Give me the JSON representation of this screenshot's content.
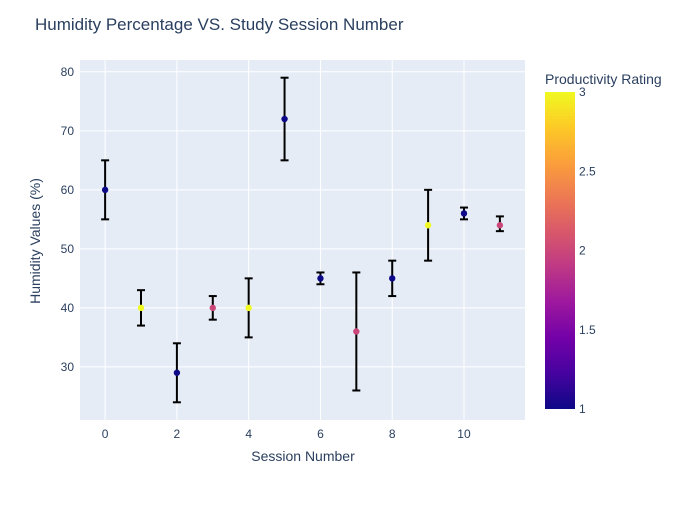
{
  "chart_data": {
    "type": "scatter",
    "title": "Humidity Percentage VS. Study Session Number",
    "xlabel": "Session Number",
    "ylabel": "Humidity Values (%)",
    "xlim": [
      -0.7,
      11.7
    ],
    "ylim": [
      21,
      82
    ],
    "x_ticks": [
      0,
      2,
      4,
      6,
      8,
      10
    ],
    "y_ticks": [
      30,
      40,
      50,
      60,
      70,
      80
    ],
    "grid": true,
    "points": [
      {
        "x": 0,
        "y": 60,
        "err_low": 55,
        "err_high": 65,
        "rating": 1
      },
      {
        "x": 1,
        "y": 40,
        "err_low": 37,
        "err_high": 43,
        "rating": 3
      },
      {
        "x": 2,
        "y": 29,
        "err_low": 24,
        "err_high": 34,
        "rating": 1
      },
      {
        "x": 3,
        "y": 40,
        "err_low": 38,
        "err_high": 42,
        "rating": 2
      },
      {
        "x": 4,
        "y": 40,
        "err_low": 35,
        "err_high": 45,
        "rating": 3
      },
      {
        "x": 5,
        "y": 72,
        "err_low": 65,
        "err_high": 79,
        "rating": 1
      },
      {
        "x": 6,
        "y": 45,
        "err_low": 44,
        "err_high": 46,
        "rating": 1
      },
      {
        "x": 7,
        "y": 36,
        "err_low": 26,
        "err_high": 46,
        "rating": 2
      },
      {
        "x": 8,
        "y": 45,
        "err_low": 42,
        "err_high": 48,
        "rating": 1
      },
      {
        "x": 9,
        "y": 54,
        "err_low": 48,
        "err_high": 60,
        "rating": 3
      },
      {
        "x": 10,
        "y": 56,
        "err_low": 55,
        "err_high": 57,
        "rating": 1
      },
      {
        "x": 11,
        "y": 54,
        "err_low": 53,
        "err_high": 55.5,
        "rating": 2
      }
    ],
    "colorbar": {
      "title": "Productivity Rating",
      "min": 1,
      "max": 3,
      "ticks": [
        1,
        1.5,
        2,
        2.5,
        3
      ],
      "tick_labels": [
        "1",
        "1.5",
        "2",
        "2.5",
        "3"
      ],
      "colors": [
        "#0d0887",
        "#46039f",
        "#7201a8",
        "#9c179e",
        "#bd3786",
        "#d8576b",
        "#ed7953",
        "#fb9f3a",
        "#fdca26",
        "#f0f921"
      ]
    }
  },
  "style": {
    "plot_bg": "#e5ecf6",
    "grid_color": "#ffffff",
    "text_color": "#2a3f5f",
    "error_bar_color": "#000000"
  }
}
